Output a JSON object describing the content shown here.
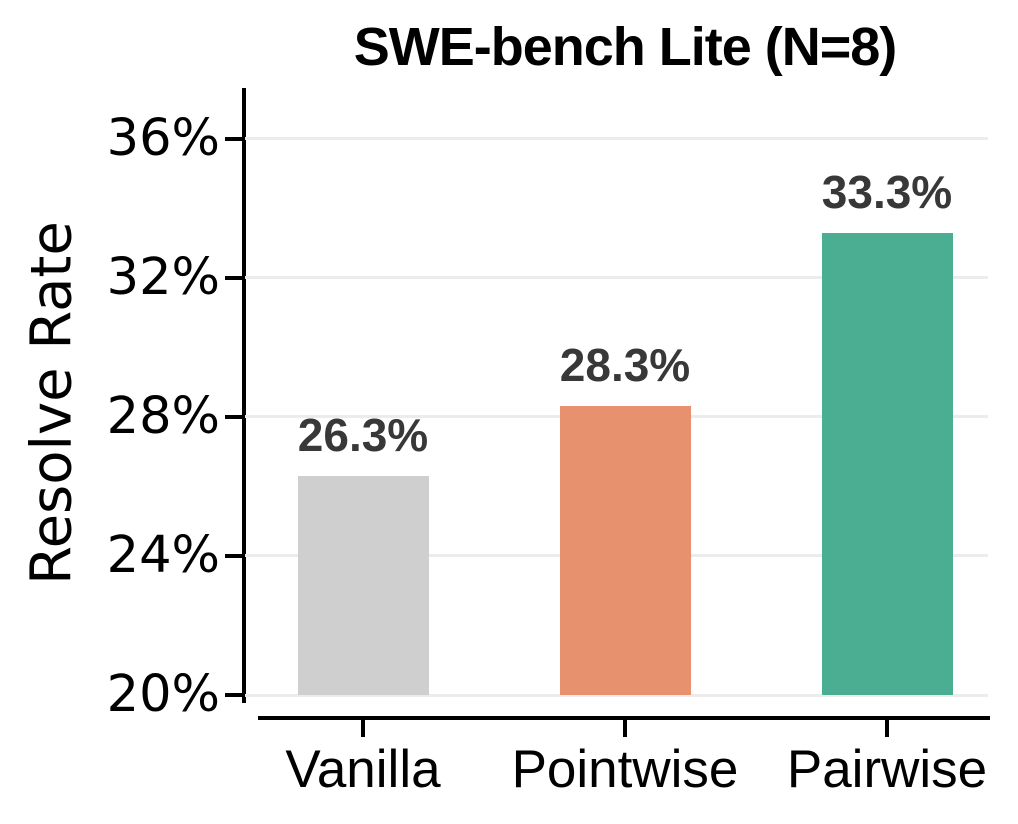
{
  "chart_data": {
    "type": "bar",
    "title": "SWE-bench Lite (N=8)",
    "xlabel": "",
    "ylabel": "Resolve Rate",
    "categories": [
      "Vanilla",
      "Pointwise",
      "Pairwise"
    ],
    "values": [
      26.3,
      28.3,
      33.3
    ],
    "value_labels": [
      "26.3%",
      "28.3%",
      "33.3%"
    ],
    "bar_colors": [
      "#cfcfcf",
      "#e8916f",
      "#4bae93"
    ],
    "yticks": [
      20,
      24,
      28,
      32,
      36
    ],
    "ytick_labels": [
      "20%",
      "24%",
      "28%",
      "32%",
      "36%"
    ],
    "ylim": [
      20,
      37.4
    ],
    "grid": "horizontal",
    "legend": "none",
    "colors": {
      "title_text": "#000000",
      "tick_text": "#000000",
      "value_label_text": "#383838",
      "gridline": "#ececec",
      "axis_spine": "#000000",
      "background": "#ffffff"
    }
  }
}
